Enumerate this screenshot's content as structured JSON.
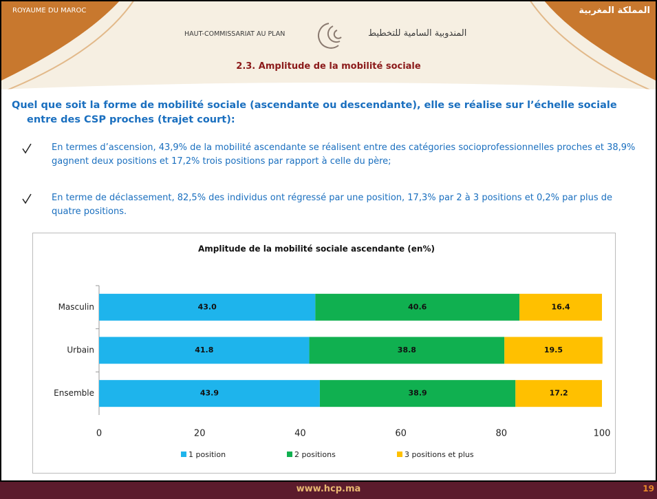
{
  "header": {
    "left": "ROYAUME DU MAROC",
    "right": "المملكة المغربية",
    "org_fr": "HAUT-COMMISSARIAT AU PLAN",
    "org_ar": "المندوبية السامية للتخطيط",
    "title": "2.3. Amplitude de la mobilité sociale"
  },
  "body": {
    "lead": "Quel que soit la forme de mobilité sociale (ascendante ou descendante), elle se réalise sur l’échelle sociale entre des CSP proches (trajet court):",
    "bullets": [
      "En termes d’ascension, 43,9% de la mobilité ascendante se réalisent entre des catégories socioprofessionnelles proches et 38,9% gagnent deux positions et 17,2% trois positions par rapport à celle du père;",
      "En terme de déclassement, 82,5% des individus ont régressé par une position, 17,3% par 2 à 3 positions et 0,2% par plus de quatre positions."
    ]
  },
  "chart_data": {
    "type": "stacked_barh",
    "title": "Amplitude de la mobilité sociale ascendante (en%)",
    "categories": [
      "Masculin",
      "Urbain",
      "Ensemble"
    ],
    "series": [
      {
        "name": "1 position",
        "color": "#1eb4ec",
        "values": [
          43.0,
          41.8,
          43.9
        ],
        "value_labels": [
          "43.0",
          "41.8",
          "43.9"
        ]
      },
      {
        "name": "2 positions",
        "color": "#10b050",
        "values": [
          40.6,
          38.8,
          38.9
        ],
        "value_labels": [
          "40.6",
          "38.8",
          "38.9"
        ]
      },
      {
        "name": "3 positions et plus",
        "color": "#ffc000",
        "values": [
          16.4,
          19.5,
          17.2
        ],
        "value_labels": [
          "16.4",
          "19.5",
          "17.2"
        ]
      }
    ],
    "xlim": [
      0,
      100
    ],
    "xticks": [
      0,
      20,
      40,
      60,
      80,
      100
    ],
    "legend": "bottom"
  },
  "footer": {
    "url": "www.hcp.ma",
    "page": "19"
  }
}
